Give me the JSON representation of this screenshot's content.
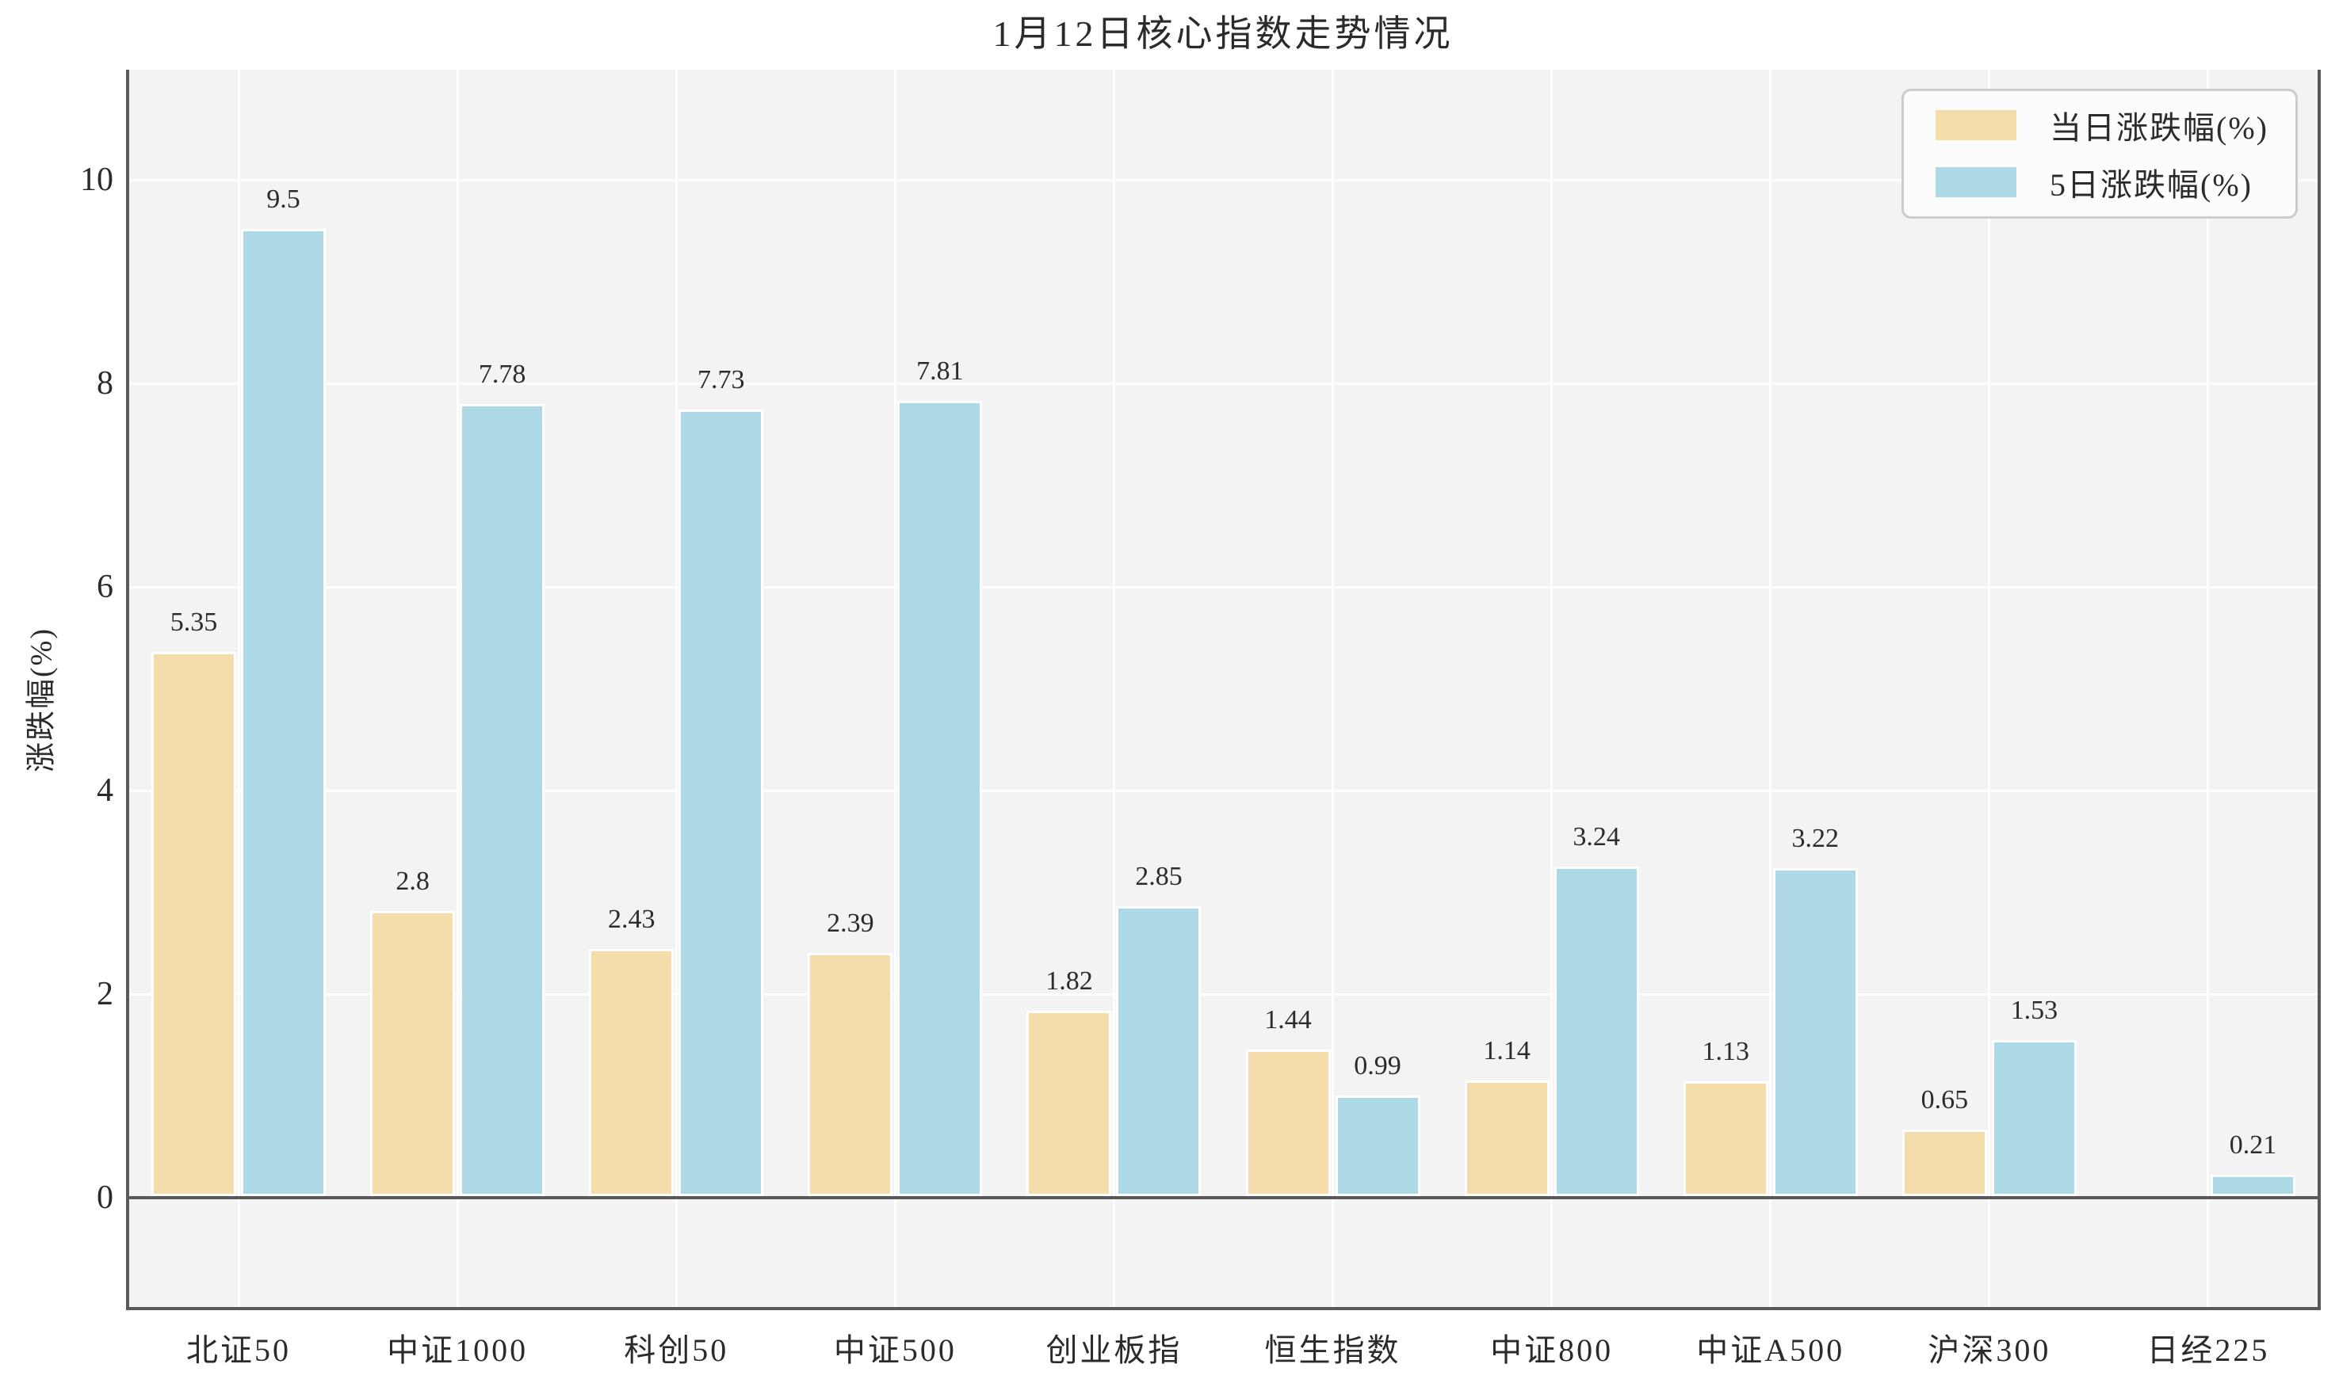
{
  "title": "1月12日核心指数走势情况",
  "chart_data": {
    "type": "bar",
    "title": "1月12日核心指数走势情况",
    "xlabel": "",
    "ylabel": "涨跌幅(%)",
    "categories": [
      "北证50",
      "中证1000",
      "科创50",
      "中证500",
      "创业板指",
      "恒生指数",
      "中证800",
      "中证A500",
      "沪深300",
      "日经225"
    ],
    "series": [
      {
        "name": "当日涨跌幅(%)",
        "color": "#F4DDAA",
        "values": [
          5.35,
          2.8,
          2.43,
          2.39,
          1.82,
          1.44,
          1.14,
          1.13,
          0.65,
          null
        ],
        "labels": [
          "5.35",
          "2.8",
          "2.43",
          "2.39",
          "1.82",
          "1.44",
          "1.14",
          "1.13",
          "0.65",
          ""
        ]
      },
      {
        "name": "5日涨跌幅(%)",
        "color": "#ADD8E6",
        "values": [
          9.5,
          7.78,
          7.73,
          7.81,
          2.85,
          0.99,
          3.24,
          3.22,
          1.53,
          0.21
        ],
        "labels": [
          "9.5",
          "7.78",
          "7.73",
          "7.81",
          "2.85",
          "0.99",
          "3.24",
          "3.22",
          "1.53",
          "0.21"
        ]
      }
    ],
    "yticks": [
      0,
      2,
      4,
      6,
      8,
      10
    ],
    "ylim": [
      -1.07,
      11.08
    ],
    "grid": true,
    "legend_position": "upper right",
    "colors": {
      "figure_bg": "#FFFFFF",
      "plot_bg": "#F3F3F3",
      "grid": "#FFFFFF",
      "axis": "#595959",
      "text": "#2B2B2B",
      "legend_bg": "#FCFCFC",
      "legend_border": "#CCCCCC"
    }
  }
}
